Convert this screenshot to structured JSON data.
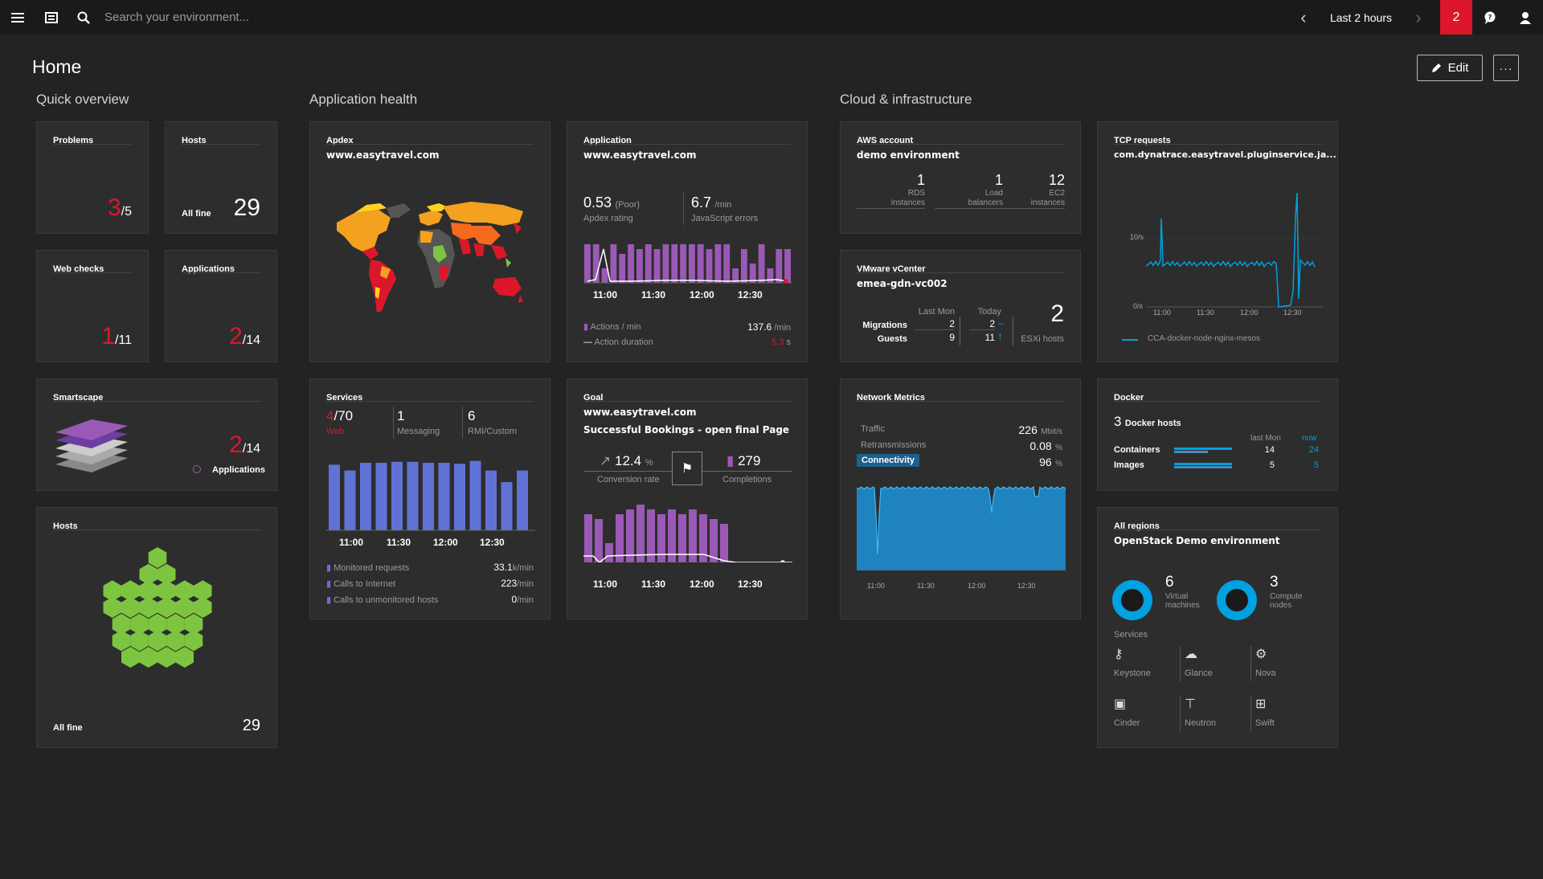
{
  "topbar": {
    "search_placeholder": "Search your environment...",
    "timeframe": "Last 2 hours",
    "notifications": "2"
  },
  "page": {
    "title": "Home",
    "edit_label": "Edit",
    "more_label": "···"
  },
  "sections": {
    "quick": "Quick overview",
    "apphealth": "Application health",
    "cloud": "Cloud & infrastructure"
  },
  "problems": {
    "title": "Problems",
    "count": "3",
    "total": "/5"
  },
  "hosts_small": {
    "title": "Hosts",
    "status": "All fine",
    "count": "29"
  },
  "webchecks": {
    "title": "Web checks",
    "count": "1",
    "total": "/11"
  },
  "applications": {
    "title": "Applications",
    "count": "2",
    "total": "/14"
  },
  "smartscape": {
    "title": "Smartscape",
    "count": "2",
    "total": "/14",
    "legend": "Applications"
  },
  "hosts_big": {
    "title": "Hosts",
    "status": "All fine",
    "count": "29"
  },
  "apdex": {
    "title": "Apdex",
    "subtitle": "www.easytravel.com"
  },
  "application": {
    "title": "Application",
    "subtitle": "www.easytravel.com",
    "apdex_value": "0.53",
    "apdex_qual": "(Poor)",
    "apdex_label": "Apdex rating",
    "js_value": "6.7",
    "js_unit": "/min",
    "js_label": "JavaScript errors",
    "times": [
      "11:00",
      "11:30",
      "12:00",
      "12:30"
    ],
    "legend1": "Actions / min",
    "legend1_value": "137.6",
    "legend1_unit": "/min",
    "legend2": "Action duration",
    "legend2_value": "5.3",
    "legend2_unit": "s"
  },
  "services": {
    "title": "Services",
    "web_count": "4",
    "web_total": "/70",
    "web_label": "Web",
    "msg_count": "1",
    "msg_label": "Messaging",
    "rmi_count": "6",
    "rmi_label": "RMI/Custom",
    "times": [
      "11:00",
      "11:30",
      "12:00",
      "12:30"
    ],
    "m1": "Monitored requests",
    "m1v": "33.1",
    "m1u": "k/min",
    "m2": "Calls to Internet",
    "m2v": "223",
    "m2u": "/min",
    "m3": "Calls to unmonitored hosts",
    "m3v": "0",
    "m3u": "/min"
  },
  "goal": {
    "title": "Goal",
    "subtitle": "www.easytravel.com",
    "goal_name": "Successful Bookings - open final Page",
    "conv_value": "12.4",
    "conv_unit": "%",
    "conv_label": "Conversion rate",
    "comp_value": "279",
    "comp_label": "Completions",
    "times": [
      "11:00",
      "11:30",
      "12:00",
      "12:30"
    ]
  },
  "aws": {
    "title": "AWS account",
    "subtitle": "demo environment",
    "items": [
      {
        "v": "1",
        "l1": "RDS",
        "l2": "instances"
      },
      {
        "v": "1",
        "l1": "Load",
        "l2": "balancers"
      },
      {
        "v": "12",
        "l1": "EC2",
        "l2": "instances"
      }
    ]
  },
  "vmware": {
    "title": "VMware vCenter",
    "subtitle": "emea-gdn-vc002",
    "col1": "Last Mon",
    "col2": "Today",
    "row1": "Migrations",
    "row2": "Guests",
    "m_last": "2",
    "m_today": "2",
    "g_last": "9",
    "g_today": "11",
    "esxi_count": "2",
    "esxi_label": "ESXi hosts"
  },
  "network": {
    "title": "Network Metrics",
    "r1": "Traffic",
    "r1v": "226",
    "r1u": "Mbit/s",
    "r2": "Retransmissions",
    "r2v": "0.08",
    "r2u": "%",
    "r3": "Connectivity",
    "r3v": "96",
    "r3u": "%",
    "times": [
      "11:00",
      "11:30",
      "12:00",
      "12:30"
    ]
  },
  "tcp": {
    "title": "TCP requests",
    "subtitle": "com.dynatrace.easytravel.pluginservice.ja...",
    "y1": "10/s",
    "y0": "0/s",
    "times": [
      "11:00",
      "11:30",
      "12:00",
      "12:30"
    ],
    "legend": "CCA-docker-node-nginx-mesos"
  },
  "docker": {
    "title": "Docker",
    "hosts_count": "3",
    "hosts_label": "Docker hosts",
    "col1": "last Mon",
    "col2": "now",
    "r1": "Containers",
    "r1_last": "14",
    "r1_now": "24",
    "r2": "Images",
    "r2_last": "5",
    "r2_now": "5"
  },
  "openstack": {
    "title": "All regions",
    "subtitle": "OpenStack Demo environment",
    "vm_count": "6",
    "vm_label1": "Virtual",
    "vm_label2": "machines",
    "cn_count": "3",
    "cn_label1": "Compute",
    "cn_label2": "nodes",
    "services_label": "Services",
    "services": [
      "Keystone",
      "Glance",
      "Nova",
      "Cinder",
      "Neutron",
      "Swift"
    ]
  },
  "colors": {
    "red": "#dc172a",
    "purple": "#9b59b6",
    "blue": "#6172d6",
    "cyan": "#00a1e0",
    "green": "#7dc540",
    "tealbar": "#1e88c7"
  }
}
